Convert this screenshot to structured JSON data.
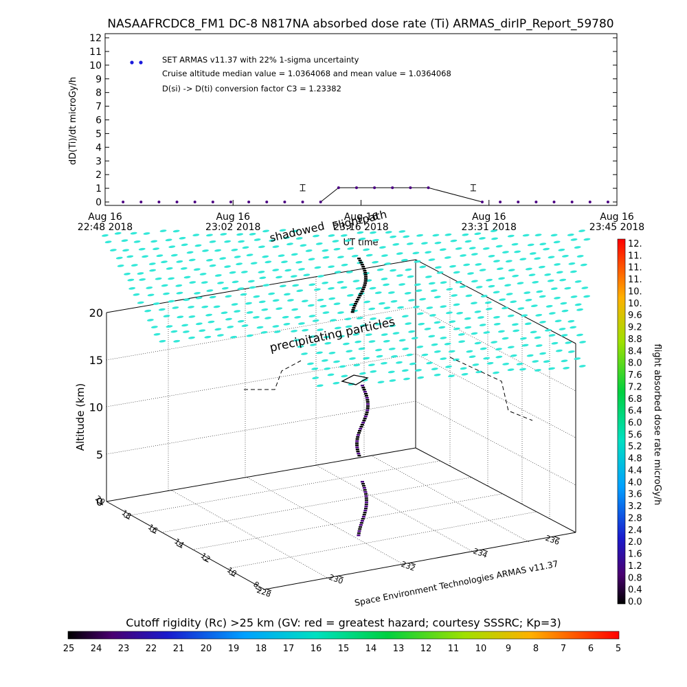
{
  "title": "NASAAFRCDC8_FM1 DC-8   N817NA absorbed dose rate (Ti) ARMAS_dirIP_Report_59780",
  "top_chart": {
    "ylabel": "dD(Ti)/dt microGy/h",
    "xlabel": "UT time",
    "legend": [
      "SET ARMAS v11.37 with 22% 1-sigma uncertainty",
      "Cruise altitude median value = 1.0364068 and mean value = 1.0364068",
      "D(si) -> D(ti) conversion factor C3 = 1.23382"
    ],
    "x_ticks": [
      {
        "line1": "Aug 16",
        "line2": "22:48 2018"
      },
      {
        "line1": "Aug 16",
        "line2": "23:02 2018"
      },
      {
        "line1": "Aug 16",
        "line2": "23:16 2018"
      },
      {
        "line1": "Aug 16",
        "line2": "23:31 2018"
      },
      {
        "line1": "Aug 16",
        "line2": "23:45 2018"
      }
    ],
    "y_ticks": [
      "0",
      "1",
      "2",
      "3",
      "4",
      "5",
      "6",
      "7",
      "8",
      "9",
      "10",
      "11",
      "12"
    ]
  },
  "chart_data": [
    {
      "type": "scatter",
      "title": "NASAAFRCDC8_FM1 DC-8   N817NA absorbed dose rate (Ti) ARMAS_dirIP_Report_59780",
      "xlabel": "UT time",
      "ylabel": "dD(Ti)/dt microGy/h",
      "xlim": [
        "2018-08-16 22:48",
        "2018-08-16 23:45"
      ],
      "ylim": [
        0,
        12
      ],
      "series": [
        {
          "name": "SET ARMAS v11.37 with 22% 1-sigma uncertainty",
          "x": [
            "22:50",
            "22:52",
            "22:54",
            "22:56",
            "22:58",
            "23:00",
            "23:02",
            "23:04",
            "23:06",
            "23:08",
            "23:10",
            "23:12",
            "23:14",
            "23:16",
            "23:18",
            "23:20",
            "23:22",
            "23:24",
            "23:30",
            "23:32",
            "23:34",
            "23:36",
            "23:38",
            "23:40",
            "23:42",
            "23:44"
          ],
          "values": [
            0,
            0,
            0,
            0,
            0,
            0,
            0,
            0,
            0,
            0,
            0,
            0,
            1.04,
            1.04,
            1.04,
            1.04,
            1.04,
            1.04,
            0,
            0,
            0,
            0,
            0,
            0,
            0,
            0
          ]
        }
      ],
      "error_bars": [
        {
          "x": "23:10",
          "value": 1.04,
          "error": 0.23
        },
        {
          "x": "23:29",
          "value": 1.04,
          "error": 0.23
        }
      ],
      "cruise_median": 1.0364068,
      "cruise_mean": 1.0364068,
      "conversion_factor_c3": 1.23382
    },
    {
      "type": "scatter",
      "subtype": "3d",
      "zlabel": "Altitude (km)",
      "zlim": [
        0,
        20
      ],
      "z_ticks": [
        "0",
        "5",
        "10",
        "15",
        "20"
      ],
      "lat_ticks": [
        "8",
        "10",
        "12",
        "14",
        "16",
        "18",
        "20"
      ],
      "lon_ticks": [
        "228",
        "230",
        "232",
        "234",
        "236"
      ],
      "annotations": [
        "shadowed",
        "Flightpath",
        "precipitating particles"
      ],
      "credit": "Space Environment Technologies ARMAS v11.37"
    }
  ],
  "colorbar_right": {
    "label": "flight absorbed dose rate microGy/h",
    "ticks": [
      "0.0",
      "0.4",
      "0.8",
      "1.2",
      "1.6",
      "2.0",
      "2.4",
      "2.8",
      "3.2",
      "3.6",
      "4.0",
      "4.4",
      "4.8",
      "5.2",
      "5.6",
      "6.0",
      "6.4",
      "6.8",
      "7.2",
      "7.6",
      "8.0",
      "8.4",
      "8.8",
      "9.2",
      "9.6",
      "10.",
      "10.",
      "11.",
      "11.",
      "11.",
      "12."
    ]
  },
  "colorbar_bottom": {
    "title": "Cutoff rigidity (Rc) >25 km (GV: red = greatest hazard; courtesy SSSRC; Kp=3)",
    "ticks": [
      "25",
      "24",
      "23",
      "22",
      "21",
      "20",
      "19",
      "18",
      "17",
      "16",
      "15",
      "14",
      "13",
      "12",
      "11",
      "10",
      "9",
      "8",
      "7",
      "6",
      "5"
    ]
  },
  "colors": {
    "particles": "#33e8d8",
    "data_points": "#4b0082",
    "legend_dot": "#1a1adc",
    "axes": "#000000"
  }
}
